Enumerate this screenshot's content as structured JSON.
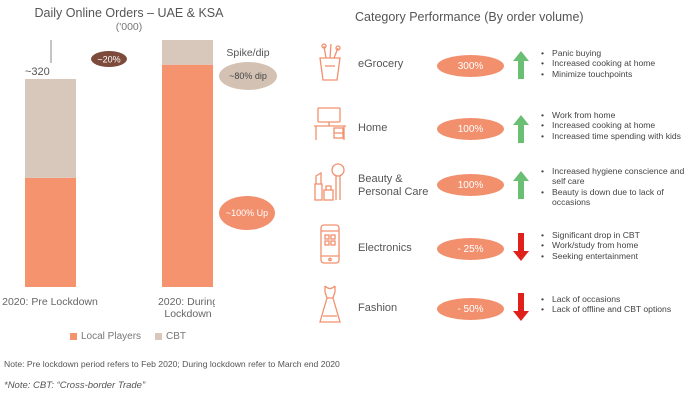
{
  "chart_data": {
    "type": "bar",
    "title": "Daily Online Orders – UAE & KSA",
    "subtitle": "('000)",
    "categories": [
      "2020: Pre Lockdown",
      "2020: During Lockdown"
    ],
    "series": [
      {
        "name": "Local Players",
        "values": [
          168,
          342
        ],
        "color": "#f5936f"
      },
      {
        "name": "CBT",
        "values": [
          152,
          38
        ],
        "color": "#d7c8bb"
      }
    ],
    "totals": [
      "~320",
      "~380"
    ],
    "growth_label": "~20%",
    "ylim": [
      0,
      400
    ]
  },
  "spike": {
    "title": "Spike/dip",
    "dip": "~80% dip",
    "up": "~100% Up"
  },
  "legend": {
    "local": "Local Players",
    "cbt": "CBT"
  },
  "performance": {
    "title": "Category Performance (By order volume)",
    "rows": [
      {
        "name": "eGrocery",
        "icon": "grocery-bag-icon",
        "value": "300%",
        "trend": "up",
        "bullets": [
          "Panic buying",
          "Increased cooking at home",
          "Minimize touchpoints"
        ]
      },
      {
        "name": "Home",
        "icon": "desk-icon",
        "value": "100%",
        "trend": "up",
        "bullets": [
          "Work from home",
          "Increased cooking at home",
          "Increased time spending with kids"
        ]
      },
      {
        "name": "Beauty & Personal Care",
        "icon": "cosmetics-icon",
        "value": "100%",
        "trend": "up",
        "bullets": [
          "Increased hygiene conscience and self care",
          "Beauty is down due to lack of occasions"
        ]
      },
      {
        "name": "Electronics",
        "icon": "smartphone-icon",
        "value": "- 25%",
        "trend": "down",
        "bullets": [
          "Significant drop in CBT",
          "Work/study from home",
          "Seeking entertainment"
        ]
      },
      {
        "name": "Fashion",
        "icon": "dress-icon",
        "value": "- 50%",
        "trend": "down",
        "bullets": [
          "Lack of occasions",
          "Lack of offline and CBT options"
        ]
      }
    ]
  },
  "colors": {
    "accent": "#f2906e",
    "up": "#6bbf73",
    "down": "#e0211b"
  },
  "notes": {
    "note1": "Note: Pre lockdown period refers to Feb 2020; During lockdown refer to March end 2020",
    "note2": "*Note: CBT: “Cross-border Trade”"
  }
}
